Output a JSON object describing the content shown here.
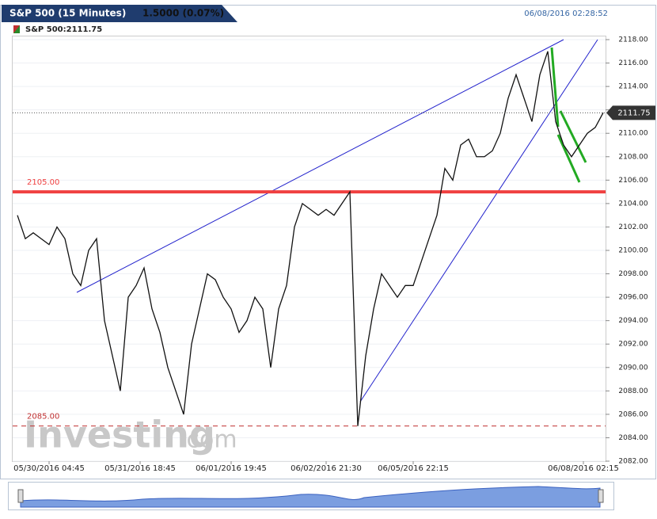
{
  "chart_data": {
    "type": "line",
    "title": "S&P 500 (15 Minutes)",
    "change": "1.5000 (0.07%)",
    "timestamp": "06/08/2016 02:28:52",
    "legend": "S&P 500:2111.75",
    "watermark": "Investing",
    "watermark_suffix": ".com",
    "last_value": 2111.75,
    "series": [
      {
        "name": "S&P 500",
        "color": "#111111",
        "values": [
          2103,
          2101,
          2101.5,
          2101,
          2100.5,
          2102,
          2101,
          2098,
          2097,
          2100,
          2101,
          2094,
          2091,
          2088,
          2096,
          2097,
          2098.5,
          2095,
          2093,
          2090,
          2088,
          2086,
          2092,
          2095,
          2098,
          2097.5,
          2096,
          2095,
          2093,
          2094,
          2096,
          2095,
          2090,
          2095,
          2097,
          2102,
          2104,
          2103.5,
          2103,
          2103.5,
          2103,
          2104,
          2105,
          2085,
          2091,
          2095,
          2098,
          2097,
          2096,
          2097,
          2097,
          2099,
          2101,
          2103,
          2107,
          2106,
          2109,
          2109.5,
          2108,
          2108,
          2108.5,
          2110,
          2113,
          2115,
          2113,
          2111,
          2115,
          2117,
          2111,
          2109,
          2108,
          2109,
          2110,
          2110.5,
          2111.75
        ]
      }
    ],
    "xlim": [
      0,
      74
    ],
    "xticks": [
      {
        "value": 4,
        "label": "05/30/2016 04:45"
      },
      {
        "value": 15.5,
        "label": "05/31/2016 18:45"
      },
      {
        "value": 27,
        "label": "06/01/2016 19:45"
      },
      {
        "value": 39,
        "label": "06/02/2016 21:30"
      },
      {
        "value": 50,
        "label": "06/05/2016 22:15"
      },
      {
        "value": 71.5,
        "label": "06/08/2016 02:15"
      }
    ],
    "ylim": [
      2082,
      2118
    ],
    "yticks": [
      {
        "value": 2082,
        "label": "2082.00"
      },
      {
        "value": 2084,
        "label": "2084.00"
      },
      {
        "value": 2086,
        "label": "2086.00"
      },
      {
        "value": 2088,
        "label": "2088.00"
      },
      {
        "value": 2090,
        "label": "2090.00"
      },
      {
        "value": 2092,
        "label": "2092.00"
      },
      {
        "value": 2094,
        "label": "2094.00"
      },
      {
        "value": 2096,
        "label": "2096.00"
      },
      {
        "value": 2098,
        "label": "2098.00"
      },
      {
        "value": 2100,
        "label": "2100.00"
      },
      {
        "value": 2102,
        "label": "2102.00"
      },
      {
        "value": 2104,
        "label": "2104.00"
      },
      {
        "value": 2106,
        "label": "2106.00"
      },
      {
        "value": 2108,
        "label": "2108.00"
      },
      {
        "value": 2110,
        "label": "2110.00"
      },
      {
        "value": 2112,
        "label": "2112.00"
      },
      {
        "value": 2114,
        "label": "2114.00"
      },
      {
        "value": 2116,
        "label": "2116.00"
      },
      {
        "value": 2118,
        "label": "2118.00"
      }
    ],
    "annotations": [
      {
        "label": "2105.00",
        "value": 2105,
        "color": "#f04040",
        "style": "solid"
      },
      {
        "label": "2085.00",
        "value": 2085,
        "color": "#c03030",
        "style": "dashed"
      }
    ]
  }
}
